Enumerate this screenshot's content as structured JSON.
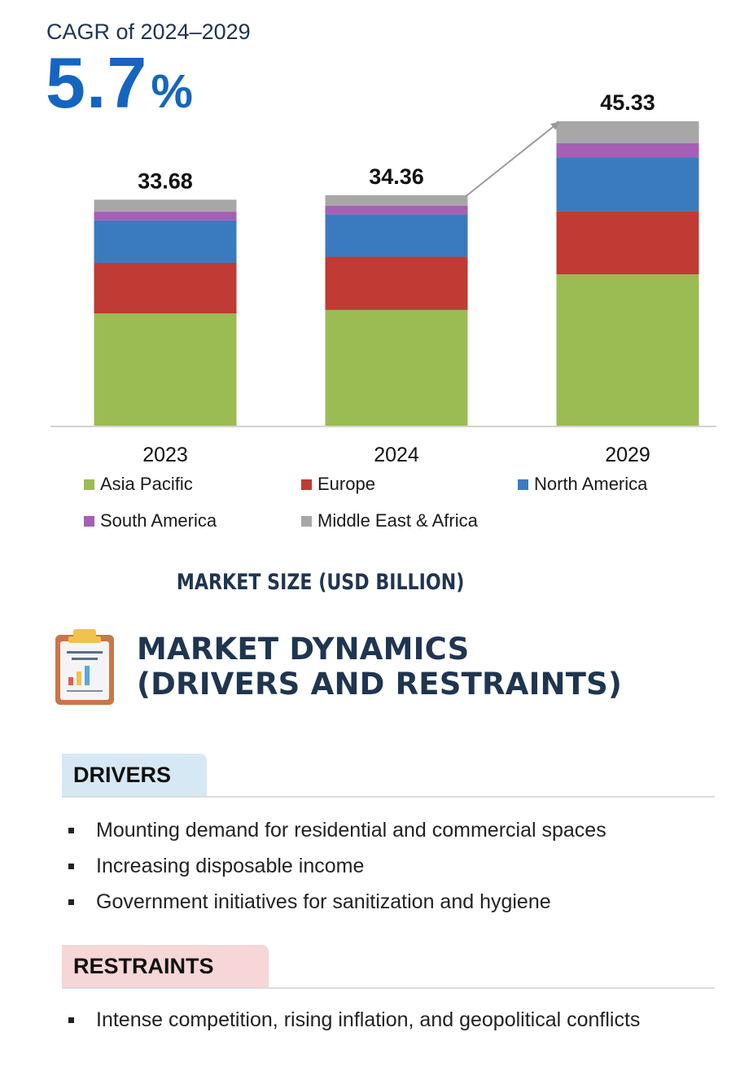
{
  "cagr": {
    "label": "CAGR of 2024–2029",
    "value": "5.7",
    "unit": "%"
  },
  "chart_data": {
    "type": "bar",
    "stacked": true,
    "categories": [
      "2023",
      "2024",
      "2029"
    ],
    "totals": [
      "33.68",
      "34.36",
      "45.33"
    ],
    "series": [
      {
        "name": "Asia Pacific",
        "color": "#9bbb53",
        "values": [
          16.8,
          17.3,
          22.6
        ]
      },
      {
        "name": "Europe",
        "color": "#bf3b34",
        "values": [
          7.5,
          7.9,
          9.4
        ]
      },
      {
        "name": "North America",
        "color": "#3a7bbf",
        "values": [
          6.3,
          6.3,
          8.0
        ]
      },
      {
        "name": "South America",
        "color": "#a55fb4",
        "values": [
          1.3,
          1.3,
          2.1
        ]
      },
      {
        "name": "Middle East & Africa",
        "color": "#a8a6a6",
        "values": [
          1.78,
          1.56,
          3.23
        ]
      }
    ],
    "ylabel": "MARKET SIZE (USD BILLION)",
    "ylim": [
      0,
      45.33
    ],
    "grid": false,
    "legend_position": "bottom",
    "annotation": "growth arrow from 2024 bar to 2029 bar"
  },
  "dynamics": {
    "icon": "clipboard-chart-icon",
    "title_line1": "MARKET DYNAMICS",
    "title_line2": "(DRIVERS AND RESTRAINTS)"
  },
  "drivers": {
    "heading": "DRIVERS",
    "items": [
      "Mounting demand for residential and commercial spaces",
      "Increasing disposable income",
      "Government initiatives for sanitization and hygiene"
    ]
  },
  "restraints": {
    "heading": "RESTRAINTS",
    "items": [
      "Intense competition, rising inflation, and geopolitical conflicts"
    ]
  }
}
